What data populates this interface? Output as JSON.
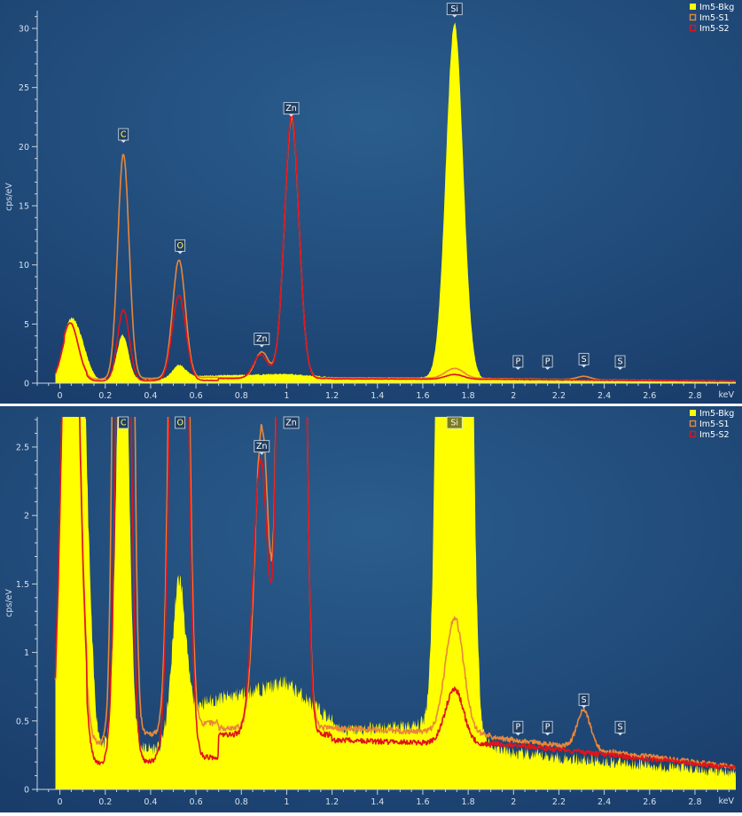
{
  "chart_data": [
    {
      "type": "line",
      "xlabel": "keV",
      "ylabel": "cps/eV",
      "xlim": [
        -0.1,
        2.98
      ],
      "ylim": [
        0,
        31.5
      ],
      "xticks": [
        0,
        0.2,
        0.4,
        0.6,
        0.8,
        1,
        1.2,
        1.4,
        1.6,
        1.8,
        2,
        2.2,
        2.4,
        2.6,
        2.8
      ],
      "xtick_labels": [
        "0",
        "0.2",
        "0.4",
        "0.6",
        "0.8",
        "1",
        "1.2",
        "1.4",
        "1.6",
        "1.8",
        "2",
        "2.2",
        "2.4",
        "2.6",
        "2.8"
      ],
      "yticks": [
        0,
        5,
        10,
        15,
        20,
        25,
        30
      ],
      "ytick_labels": [
        "0",
        "5",
        "10",
        "15",
        "20",
        "25",
        "30"
      ],
      "grid": false,
      "legend_position": "top-right",
      "series": [
        {
          "name": "Im5-Bkg",
          "color": "#ffff00",
          "style": "filled"
        },
        {
          "name": "Im5-S1",
          "color": "#e8873a",
          "style": "line"
        },
        {
          "name": "Im5-S2",
          "color": "#e0141c",
          "style": "line"
        }
      ],
      "annotations": [
        {
          "label": "C",
          "x": 0.28,
          "y": 20.4
        },
        {
          "label": "O",
          "x": 0.53,
          "y": 11.0
        },
        {
          "label": "Zn",
          "x": 0.89,
          "y": 3.1
        },
        {
          "label": "Zn",
          "x": 1.02,
          "y": 22.6
        },
        {
          "label": "Si",
          "x": 1.74,
          "y": 31.0
        },
        {
          "label": "P",
          "x": 2.02,
          "y": 1.2
        },
        {
          "label": "P",
          "x": 2.15,
          "y": 1.2
        },
        {
          "label": "S",
          "x": 2.31,
          "y": 1.4
        },
        {
          "label": "S",
          "x": 2.47,
          "y": 1.2
        }
      ]
    },
    {
      "type": "line",
      "xlabel": "keV",
      "ylabel": "cps/eV",
      "xlim": [
        -0.1,
        2.98
      ],
      "ylim": [
        0,
        2.72
      ],
      "xticks": [
        0,
        0.2,
        0.4,
        0.6,
        0.8,
        1,
        1.2,
        1.4,
        1.6,
        1.8,
        2,
        2.2,
        2.4,
        2.6,
        2.8
      ],
      "xtick_labels": [
        "0",
        "0.2",
        "0.4",
        "0.6",
        "0.8",
        "1",
        "1.2",
        "1.4",
        "1.6",
        "1.8",
        "2",
        "2.2",
        "2.4",
        "2.6",
        "2.8"
      ],
      "yticks": [
        0,
        0.5,
        1,
        1.5,
        2,
        2.5
      ],
      "ytick_labels": [
        "0",
        "0.5",
        "1",
        "1.5",
        "2",
        "2.5"
      ],
      "grid": false,
      "legend_position": "top-right",
      "series": [
        {
          "name": "Im5-Bkg",
          "color": "#ffff00",
          "style": "filled"
        },
        {
          "name": "Im5-S1",
          "color": "#e8873a",
          "style": "line"
        },
        {
          "name": "Im5-S2",
          "color": "#e0141c",
          "style": "line"
        }
      ],
      "annotations": [
        {
          "label": "C",
          "x": 0.28,
          "y": 2.72
        },
        {
          "label": "O",
          "x": 0.53,
          "y": 2.72
        },
        {
          "label": "Zn",
          "x": 0.89,
          "y": 2.45
        },
        {
          "label": "Zn",
          "x": 1.02,
          "y": 2.72
        },
        {
          "label": "Si",
          "x": 1.74,
          "y": 2.72
        },
        {
          "label": "P",
          "x": 2.02,
          "y": 0.4
        },
        {
          "label": "P",
          "x": 2.15,
          "y": 0.4
        },
        {
          "label": "S",
          "x": 2.31,
          "y": 0.6
        },
        {
          "label": "S",
          "x": 2.47,
          "y": 0.4
        }
      ]
    }
  ]
}
